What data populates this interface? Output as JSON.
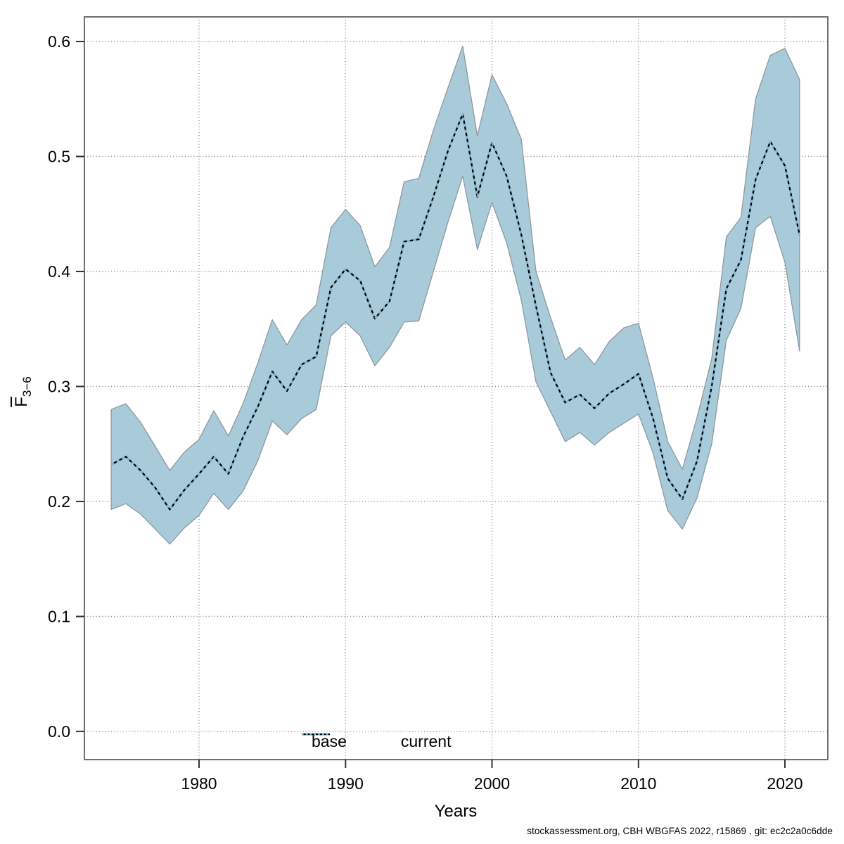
{
  "figure": {
    "xlabel": "Years",
    "ylabel": {
      "main": "F",
      "sub": "3−6"
    },
    "legend": {
      "base_label": "base",
      "current_label": "current"
    },
    "footer": "stockassessment.org, CBH WBGFAS 2022, r15869 , git: ec2c2a0c6dde"
  },
  "colors": {
    "background": "#ffffff",
    "grid": "#999999",
    "border": "#6f6f6f",
    "tick": "#333333",
    "ribbon_fill": "#a9cad8",
    "ribbon_edge": "#8b9aa3",
    "base_line": "#000000",
    "current_line": "#7db7d9",
    "text": "#000000"
  },
  "chart_data": {
    "type": "line",
    "title": "",
    "xlabel": "Years",
    "ylabel": "F̄3−6",
    "grid": true,
    "legend_position": "bottom-center",
    "xlim": [
      1972.17,
      2022.93
    ],
    "ylim": [
      -0.0245,
      0.6214
    ],
    "xticks": [
      1980,
      1990,
      2000,
      2010,
      2020
    ],
    "yticks": [
      0.0,
      0.1,
      0.2,
      0.3,
      0.4,
      0.5,
      0.6
    ],
    "x": [
      1974,
      1975,
      1976,
      1977,
      1978,
      1979,
      1980,
      1981,
      1982,
      1983,
      1984,
      1985,
      1986,
      1987,
      1988,
      1989,
      1990,
      1991,
      1992,
      1993,
      1994,
      1995,
      1996,
      1997,
      1998,
      1999,
      2000,
      2001,
      2002,
      2003,
      2004,
      2005,
      2006,
      2007,
      2008,
      2009,
      2010,
      2011,
      2012,
      2013,
      2014,
      2015,
      2016,
      2017,
      2018,
      2019,
      2020,
      2021
    ],
    "series": [
      {
        "name": "base",
        "style": "solid",
        "color": "#000000",
        "values": [
          0.232,
          0.239,
          0.227,
          0.212,
          0.193,
          0.21,
          0.224,
          0.239,
          0.224,
          0.256,
          0.282,
          0.313,
          0.296,
          0.319,
          0.326,
          0.386,
          0.402,
          0.392,
          0.359,
          0.374,
          0.426,
          0.428,
          0.465,
          0.505,
          0.537,
          0.465,
          0.512,
          0.483,
          0.432,
          0.37,
          0.312,
          0.286,
          0.293,
          0.281,
          0.294,
          0.302,
          0.311,
          0.272,
          0.22,
          0.202,
          0.235,
          0.3,
          0.385,
          0.41,
          0.48,
          0.513,
          0.492,
          0.432
        ]
      },
      {
        "name": "current",
        "style": "dotted",
        "color": "#7db7d9",
        "values": [
          0.232,
          0.239,
          0.227,
          0.212,
          0.193,
          0.21,
          0.224,
          0.239,
          0.224,
          0.256,
          0.282,
          0.313,
          0.296,
          0.319,
          0.326,
          0.386,
          0.402,
          0.392,
          0.359,
          0.374,
          0.426,
          0.428,
          0.465,
          0.505,
          0.537,
          0.465,
          0.512,
          0.483,
          0.432,
          0.37,
          0.312,
          0.286,
          0.293,
          0.281,
          0.294,
          0.302,
          0.311,
          0.272,
          0.22,
          0.202,
          0.235,
          0.3,
          0.385,
          0.41,
          0.48,
          0.513,
          0.492,
          0.432
        ]
      }
    ],
    "ribbon": {
      "fill": "#a9cad8",
      "upper": [
        0.28,
        0.285,
        0.269,
        0.248,
        0.227,
        0.243,
        0.254,
        0.279,
        0.257,
        0.285,
        0.32,
        0.358,
        0.336,
        0.358,
        0.371,
        0.438,
        0.454,
        0.44,
        0.404,
        0.421,
        0.478,
        0.481,
        0.523,
        0.56,
        0.596,
        0.518,
        0.571,
        0.546,
        0.515,
        0.4,
        0.36,
        0.323,
        0.334,
        0.319,
        0.339,
        0.351,
        0.355,
        0.307,
        0.252,
        0.228,
        0.273,
        0.324,
        0.43,
        0.447,
        0.55,
        0.588,
        0.594,
        0.567
      ],
      "lower": [
        0.193,
        0.198,
        0.189,
        0.176,
        0.163,
        0.177,
        0.188,
        0.207,
        0.193,
        0.209,
        0.235,
        0.27,
        0.258,
        0.272,
        0.28,
        0.344,
        0.356,
        0.344,
        0.318,
        0.334,
        0.356,
        0.357,
        0.4,
        0.443,
        0.483,
        0.419,
        0.46,
        0.425,
        0.375,
        0.304,
        0.278,
        0.252,
        0.26,
        0.249,
        0.26,
        0.268,
        0.276,
        0.242,
        0.192,
        0.176,
        0.203,
        0.25,
        0.34,
        0.368,
        0.438,
        0.448,
        0.408,
        0.331
      ]
    }
  }
}
